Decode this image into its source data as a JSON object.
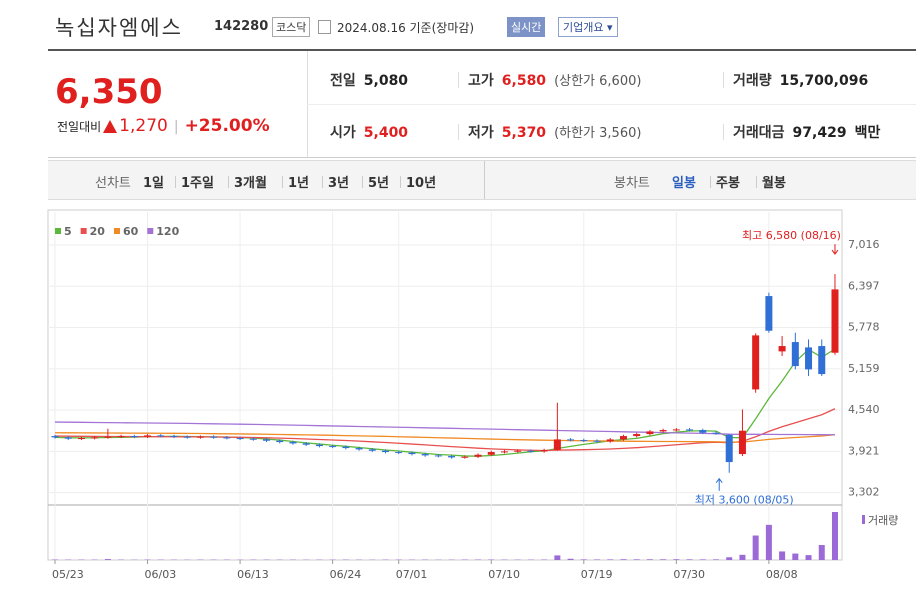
{
  "header": {
    "title": "녹십자엠에스",
    "code": "142280",
    "market": "코스닥",
    "date": "2024.08.16 기준(장마감)",
    "realtime": "실시간",
    "company_info": "기업개요"
  },
  "quote": {
    "price": "6,350",
    "change_label": "전일대비",
    "change": "1,270",
    "change_rate": "+25.00%",
    "table": [
      [
        {
          "label": "전일",
          "value": "5,080"
        },
        {
          "label": "고가",
          "value": "6,580",
          "note": "(상한가 6,600)"
        },
        {
          "label": "거래량",
          "value": "15,700,096"
        }
      ],
      [
        {
          "label": "시가",
          "value": "5,400"
        },
        {
          "label": "저가",
          "value": "5,370",
          "note": "(하한가 3,560)"
        },
        {
          "label": "거래대금",
          "value": "97,429",
          "unit": "백만"
        }
      ]
    ]
  },
  "tabs": {
    "line_label": "선차트",
    "line_periods": [
      "1일",
      "1주일",
      "3개월",
      "1년",
      "3년",
      "5년",
      "10년"
    ],
    "candle_label": "봉차트",
    "candle_periods": [
      "일봉",
      "주봉",
      "월봉"
    ],
    "active_candle": 0
  },
  "chart_data": {
    "type": "candlestick",
    "categories": [
      "05/23",
      null,
      null,
      null,
      null,
      null,
      null,
      "06/03",
      null,
      null,
      null,
      null,
      null,
      null,
      "06/13",
      null,
      null,
      null,
      null,
      null,
      null,
      "06/24",
      null,
      null,
      null,
      null,
      "07/01",
      null,
      null,
      null,
      null,
      null,
      null,
      "07/10",
      null,
      null,
      null,
      null,
      null,
      null,
      "07/19",
      null,
      null,
      null,
      null,
      null,
      null,
      "07/30",
      null,
      null,
      null,
      null,
      null,
      null,
      "08/08",
      null,
      null,
      null,
      null,
      null
    ],
    "open": [
      4150,
      4130,
      4110,
      4120,
      4130,
      4140,
      4150,
      4140,
      4160,
      4150,
      4140,
      4130,
      4140,
      4130,
      4120,
      4110,
      4100,
      4080,
      4060,
      4040,
      4020,
      4000,
      3990,
      3970,
      3950,
      3930,
      3910,
      3900,
      3880,
      3860,
      3850,
      3830,
      3840,
      3870,
      3910,
      3920,
      3930,
      3920,
      3940,
      4100,
      4090,
      4080,
      4070,
      4100,
      4150,
      4180,
      4220,
      4240,
      4250,
      4240,
      4200,
      4170,
      3880,
      4850,
      6250,
      5420,
      5560,
      5480,
      5500,
      5400
    ],
    "high": [
      4170,
      4150,
      4140,
      4150,
      4260,
      4170,
      4170,
      4180,
      4180,
      4170,
      4160,
      4160,
      4160,
      4150,
      4140,
      4130,
      4120,
      4100,
      4080,
      4060,
      4040,
      4020,
      4010,
      3990,
      3970,
      3950,
      3930,
      3920,
      3900,
      3880,
      3870,
      3860,
      3890,
      3930,
      3940,
      3950,
      3950,
      3960,
      4650,
      4120,
      4110,
      4100,
      4120,
      4170,
      4200,
      4240,
      4260,
      4270,
      4270,
      4260,
      4220,
      4180,
      4550,
      5690,
      6300,
      5650,
      5700,
      5600,
      5600,
      6580
    ],
    "low": [
      4110,
      4090,
      4090,
      4100,
      4110,
      4120,
      4120,
      4120,
      4130,
      4120,
      4110,
      4110,
      4110,
      4100,
      4090,
      4080,
      4060,
      4040,
      4020,
      4000,
      3980,
      3970,
      3950,
      3930,
      3910,
      3890,
      3880,
      3860,
      3840,
      3830,
      3810,
      3810,
      3820,
      3850,
      3890,
      3900,
      3900,
      3900,
      3930,
      4070,
      4060,
      4050,
      4050,
      4080,
      4130,
      4160,
      4200,
      4220,
      4220,
      4180,
      4170,
      3600,
      3850,
      4800,
      5700,
      5350,
      5150,
      5050,
      5050,
      5370
    ],
    "close": [
      4130,
      4110,
      4120,
      4130,
      4140,
      4150,
      4140,
      4160,
      4150,
      4140,
      4130,
      4140,
      4130,
      4120,
      4110,
      4100,
      4080,
      4060,
      4040,
      4020,
      4000,
      3990,
      3970,
      3950,
      3930,
      3910,
      3900,
      3880,
      3860,
      3850,
      3830,
      3840,
      3870,
      3910,
      3920,
      3930,
      3920,
      3940,
      4100,
      4090,
      4080,
      4070,
      4100,
      4150,
      4180,
      4220,
      4240,
      4250,
      4240,
      4200,
      4190,
      3760,
      4230,
      5660,
      5730,
      5500,
      5200,
      5150,
      5080,
      6350
    ],
    "up_color": "#e01f1f",
    "down_color": "#2f6fd6",
    "series": [
      {
        "name": "5",
        "color": "#5cb83c",
        "values": [
          4130,
          4125,
          4122,
          4125,
          4128,
          4130,
          4134,
          4140,
          4144,
          4146,
          4144,
          4142,
          4138,
          4136,
          4128,
          4120,
          4104,
          4090,
          4068,
          4048,
          4030,
          4012,
          3996,
          3978,
          3960,
          3940,
          3926,
          3908,
          3890,
          3874,
          3864,
          3852,
          3848,
          3858,
          3874,
          3894,
          3916,
          3928,
          3964,
          3996,
          4026,
          4052,
          4080,
          4098,
          4116,
          4150,
          4186,
          4208,
          4226,
          4230,
          4224,
          4128,
          4124,
          4408,
          4714,
          4976,
          5264,
          5448,
          5332,
          5456
        ]
      },
      {
        "name": "20",
        "color": "#e8504f",
        "values": [
          4150,
          4148,
          4146,
          4145,
          4144,
          4143,
          4142,
          4142,
          4141,
          4140,
          4139,
          4138,
          4136,
          4134,
          4131,
          4128,
          4124,
          4119,
          4113,
          4106,
          4099,
          4091,
          4083,
          4074,
          4064,
          4053,
          4042,
          4030,
          4018,
          4005,
          3992,
          3980,
          3968,
          3958,
          3950,
          3943,
          3937,
          3934,
          3939,
          3942,
          3946,
          3950,
          3956,
          3965,
          3976,
          3990,
          4005,
          4020,
          4035,
          4050,
          4058,
          4050,
          4070,
          4140,
          4220,
          4290,
          4350,
          4410,
          4470,
          4560
        ]
      },
      {
        "name": "60",
        "color": "#f08a24",
        "values": [
          4200,
          4199,
          4198,
          4197,
          4196,
          4195,
          4194,
          4193,
          4192,
          4191,
          4190,
          4188,
          4186,
          4184,
          4182,
          4180,
          4177,
          4174,
          4171,
          4168,
          4165,
          4161,
          4157,
          4153,
          4149,
          4145,
          4140,
          4135,
          4130,
          4125,
          4120,
          4115,
          4110,
          4105,
          4100,
          4096,
          4092,
          4088,
          4085,
          4082,
          4080,
          4077,
          4075,
          4073,
          4071,
          4070,
          4069,
          4068,
          4067,
          4066,
          4065,
          4058,
          4060,
          4080,
          4100,
          4115,
          4128,
          4140,
          4152,
          4170
        ]
      },
      {
        "name": "120",
        "color": "#a374d6",
        "values": [
          4360,
          4358,
          4356,
          4354,
          4352,
          4350,
          4348,
          4346,
          4344,
          4342,
          4340,
          4337,
          4334,
          4331,
          4328,
          4325,
          4322,
          4318,
          4314,
          4310,
          4306,
          4302,
          4298,
          4294,
          4290,
          4286,
          4282,
          4278,
          4274,
          4270,
          4266,
          4262,
          4258,
          4254,
          4250,
          4246,
          4242,
          4238,
          4234,
          4230,
          4226,
          4222,
          4218,
          4214,
          4210,
          4206,
          4202,
          4198,
          4194,
          4190,
          4186,
          4178,
          4176,
          4176,
          4175,
          4174,
          4173,
          4172,
          4171,
          4170
        ]
      }
    ],
    "volume": {
      "name": "거래량",
      "color": "#9b6ad6",
      "values": [
        150000,
        120000,
        130000,
        110000,
        300000,
        120000,
        100000,
        140000,
        120000,
        110000,
        100000,
        130000,
        120000,
        110000,
        100000,
        120000,
        130000,
        110000,
        120000,
        100000,
        110000,
        120000,
        130000,
        110000,
        100000,
        120000,
        130000,
        110000,
        120000,
        100000,
        110000,
        140000,
        150000,
        160000,
        130000,
        120000,
        130000,
        150000,
        1500000,
        400000,
        200000,
        180000,
        200000,
        250000,
        220000,
        240000,
        230000,
        250000,
        220000,
        200000,
        210000,
        900000,
        1700000,
        8000000,
        11500000,
        2800000,
        2100000,
        1600000,
        4900000,
        15700096
      ]
    },
    "ylim": [
      3116,
      7511
    ],
    "yticks": [
      {
        "value": 3302,
        "label": "3,302"
      },
      {
        "value": 3921,
        "label": "3,921"
      },
      {
        "value": 4540,
        "label": "4,540"
      },
      {
        "value": 5159,
        "label": "5,159"
      },
      {
        "value": 5778,
        "label": "5,778"
      },
      {
        "value": 6397,
        "label": "6,397"
      },
      {
        "value": 7016,
        "label": "7,016"
      }
    ],
    "grid": true,
    "annotations": {
      "high": "최고 6,580 (08/16)",
      "low": "최저 3,600 (08/05)"
    }
  }
}
